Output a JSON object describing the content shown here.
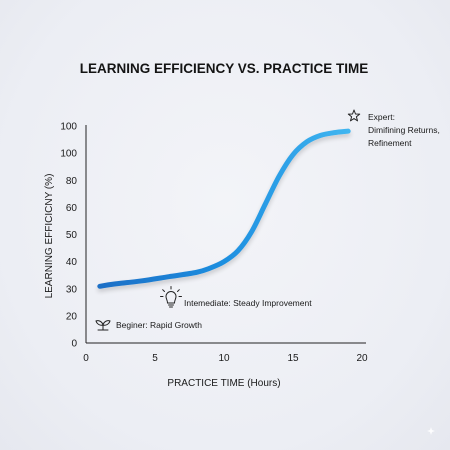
{
  "chart_data": {
    "type": "line",
    "title": "LEARNING EFFICIENCY VS. PRACTICE TIME",
    "xlabel": "PRACTICE TIME (Hours)",
    "ylabel": "LEARNING EFFICICNY (%)",
    "xlim": [
      0,
      20
    ],
    "ylim": [
      0,
      100
    ],
    "x_ticks": [
      "0",
      "5",
      "10",
      "15",
      "20"
    ],
    "y_ticks": [
      "0",
      "20",
      "30",
      "40",
      "50",
      "60",
      "80",
      "100",
      "100"
    ],
    "grid": false,
    "series": [
      {
        "color": "#1d8ee0",
        "x": [
          1,
          2,
          4,
          6,
          8,
          9,
          10,
          11,
          12,
          13,
          14,
          15,
          16,
          17,
          18,
          19
        ],
        "y": [
          26.5,
          27.5,
          29,
          31,
          33,
          35,
          38,
          43,
          52,
          65,
          78,
          88,
          94,
          97,
          98.3,
          99
        ]
      }
    ],
    "annotations": [
      {
        "icon": "sprout-icon",
        "lines": [
          "Beginer: Rapid Growth"
        ],
        "x": 1,
        "y": 6
      },
      {
        "icon": "lightbulb-icon",
        "lines": [
          "Intemediate: Steady Improvement"
        ],
        "x": 9.2,
        "y": 13
      },
      {
        "icon": "star-icon",
        "lines": [
          "Expert:",
          "Dimifining Returns,",
          "Refinement"
        ],
        "x": 19,
        "y": 99
      }
    ]
  }
}
